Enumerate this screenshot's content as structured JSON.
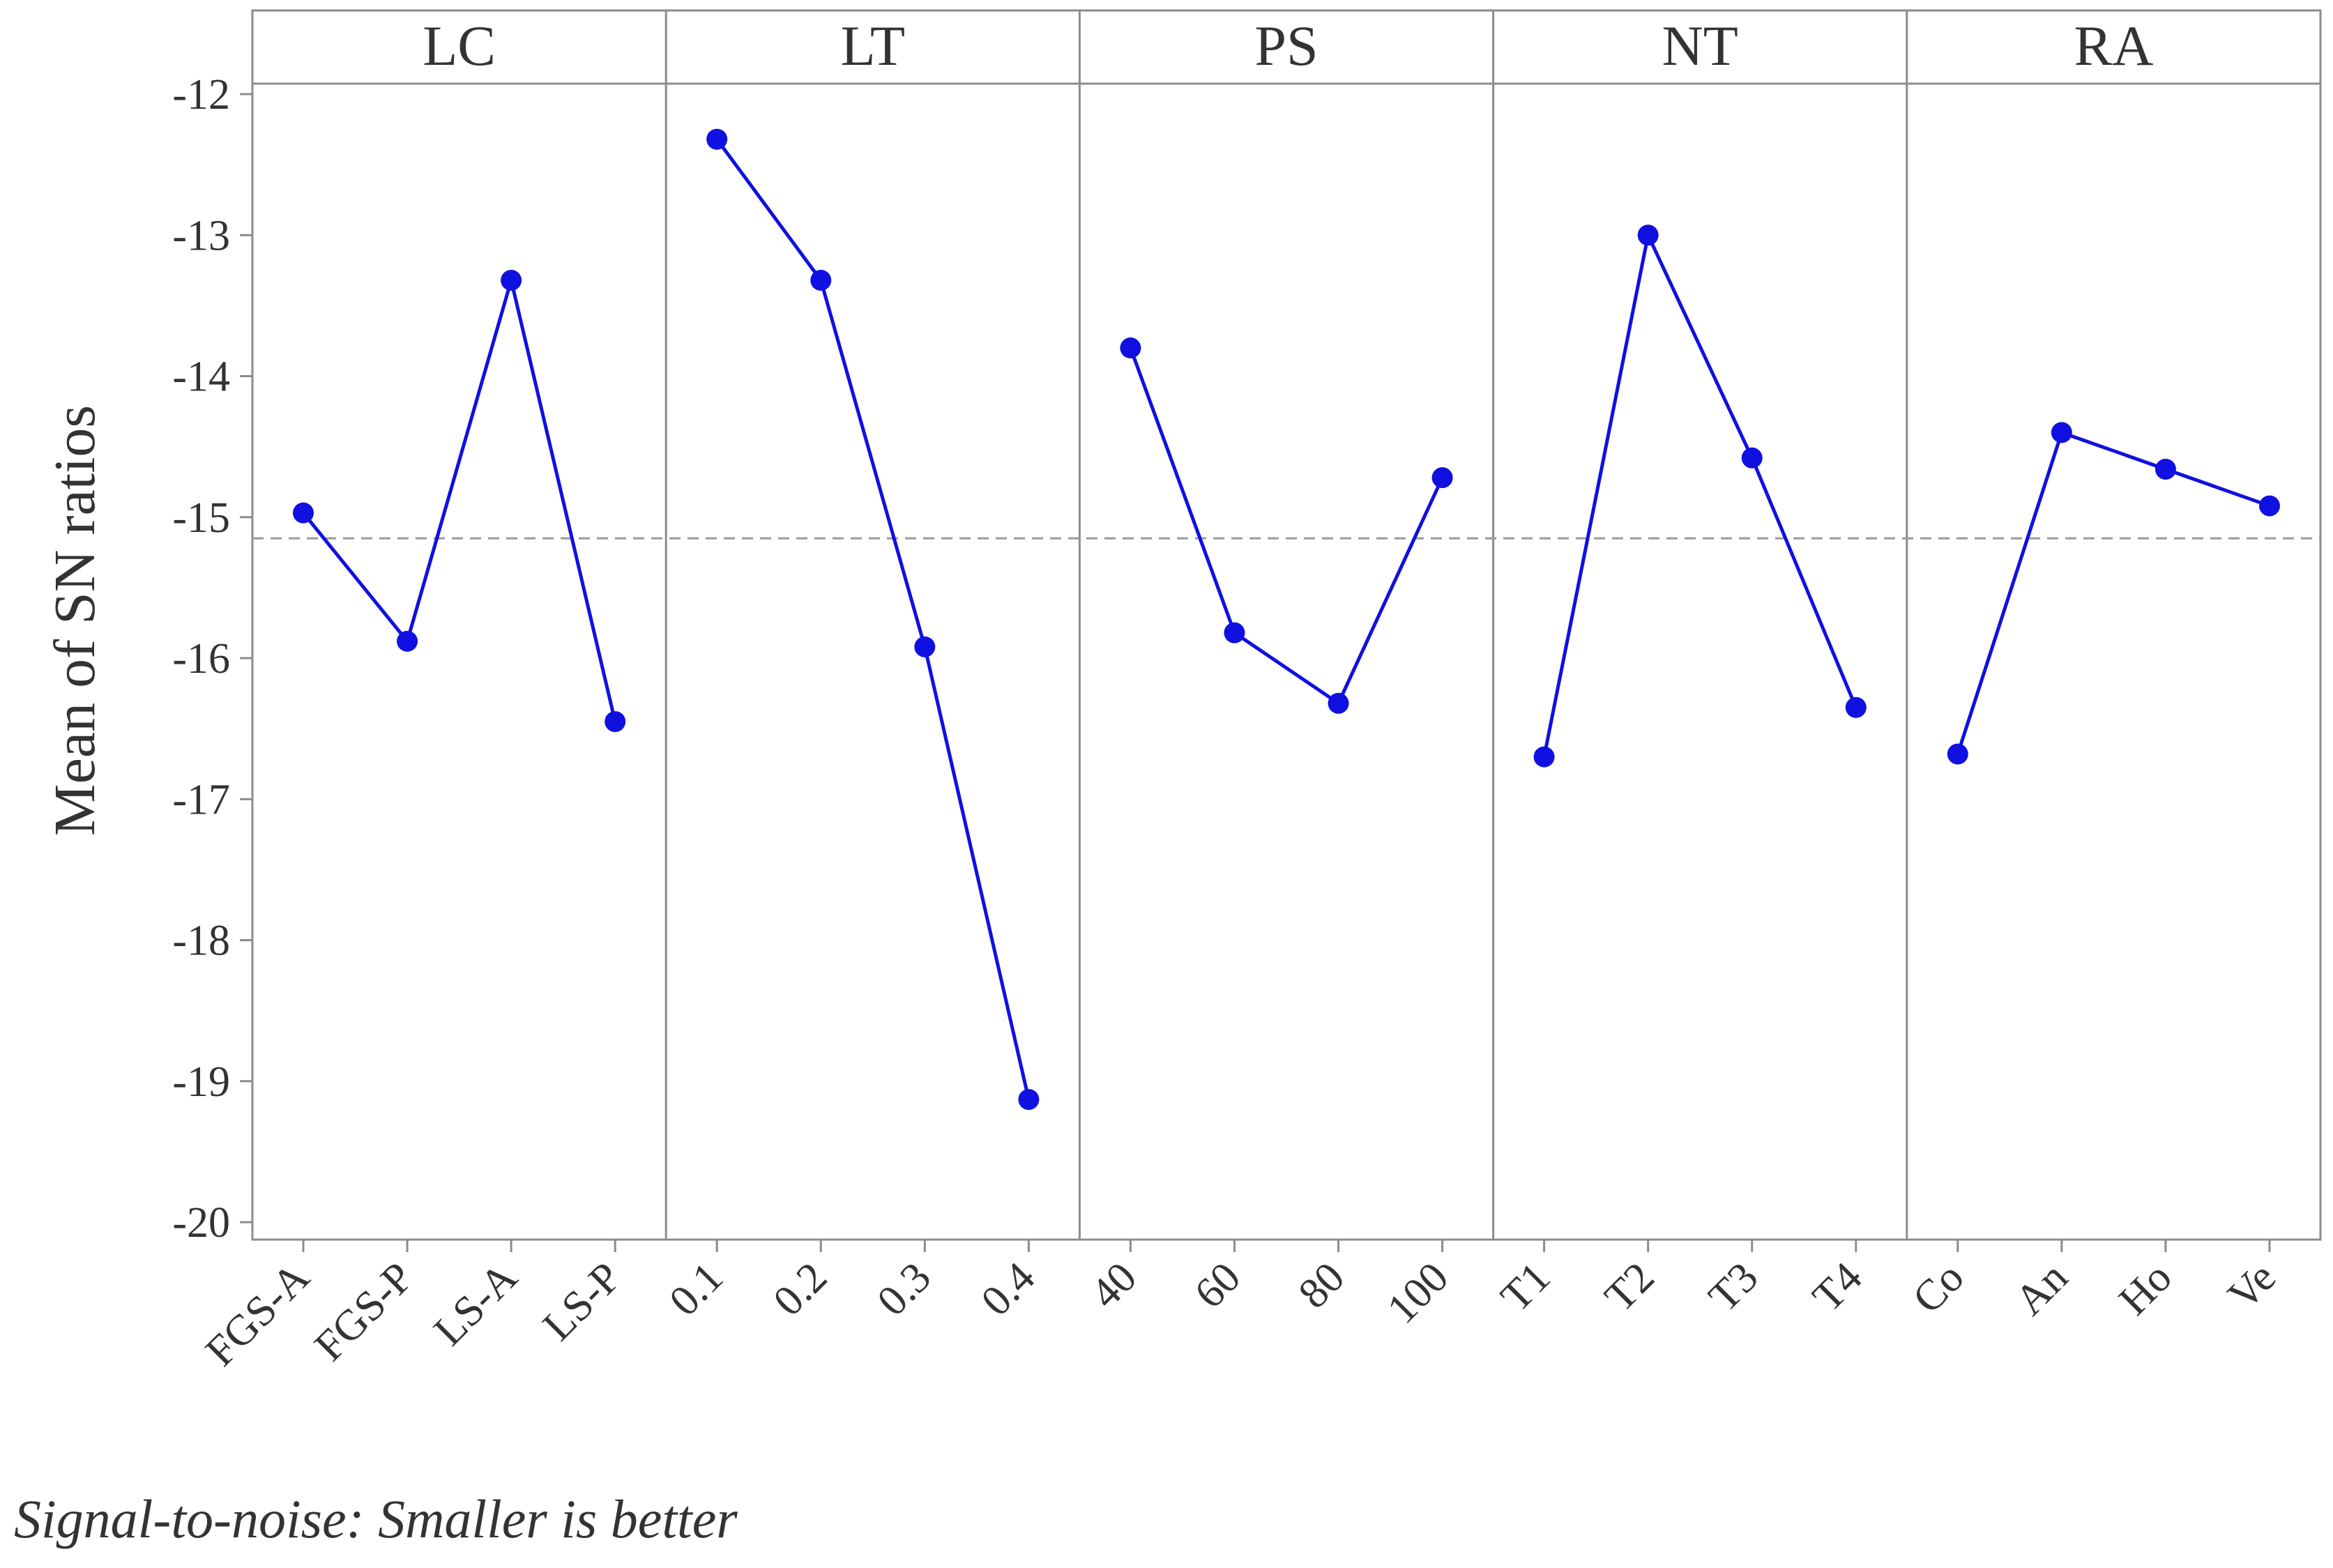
{
  "chart_data": {
    "type": "line",
    "title": "",
    "ylabel": "Mean of SN ratios",
    "ylim": [
      -20,
      -12
    ],
    "yticks": [
      -20,
      -19,
      -18,
      -17,
      -16,
      -15,
      -14,
      -13,
      -12
    ],
    "reference_line": {
      "value": -15.15,
      "style": "dashed"
    },
    "line_color": "#1010e0",
    "panels": [
      {
        "name": "LC",
        "categories": [
          "FGS-A",
          "FGS-P",
          "LS-A",
          "LS-P"
        ],
        "values": [
          -14.97,
          -15.88,
          -13.32,
          -16.45
        ]
      },
      {
        "name": "LT",
        "categories": [
          "0.1",
          "0.2",
          "0.3",
          "0.4"
        ],
        "values": [
          -12.32,
          -13.32,
          -15.92,
          -19.13
        ]
      },
      {
        "name": "PS",
        "categories": [
          "40",
          "60",
          "80",
          "100"
        ],
        "values": [
          -13.8,
          -15.82,
          -16.32,
          -14.72
        ]
      },
      {
        "name": "NT",
        "categories": [
          "T1",
          "T2",
          "T3",
          "T4"
        ],
        "values": [
          -16.7,
          -13.0,
          -14.58,
          -16.35
        ]
      },
      {
        "name": "RA",
        "categories": [
          "Co",
          "An",
          "Ho",
          "Ve"
        ],
        "values": [
          -16.68,
          -14.4,
          -14.66,
          -14.92
        ]
      }
    ]
  },
  "footnote": "Signal-to-noise: Smaller is better"
}
